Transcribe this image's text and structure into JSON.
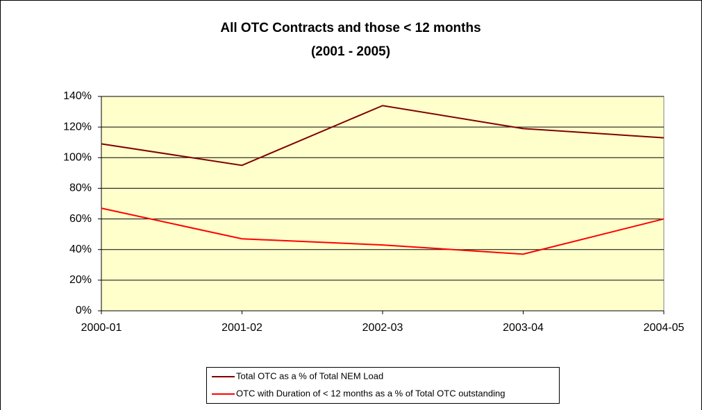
{
  "chart_data": {
    "type": "line",
    "title": [
      "All OTC Contracts and those < 12 months",
      "(2001 - 2005)"
    ],
    "categories": [
      "2000-01",
      "2001-02",
      "2002-03",
      "2003-04",
      "2004-05"
    ],
    "series": [
      {
        "name": "Total OTC as a % of Total NEM Load",
        "color": "#800000",
        "values": [
          109,
          95,
          134,
          119,
          113
        ]
      },
      {
        "name": "OTC with Duration of < 12 months as a % of Total OTC outstanding",
        "color": "#ff0000",
        "values": [
          67,
          47,
          43,
          37,
          60
        ]
      }
    ],
    "ylim": [
      0,
      140
    ],
    "yticks": [
      {
        "value": 0,
        "label": "0%"
      },
      {
        "value": 20,
        "label": "20%"
      },
      {
        "value": 40,
        "label": "40%"
      },
      {
        "value": 60,
        "label": "60%"
      },
      {
        "value": 80,
        "label": "80%"
      },
      {
        "value": 100,
        "label": "100%"
      },
      {
        "value": 120,
        "label": "120%"
      },
      {
        "value": 140,
        "label": "140%"
      }
    ],
    "grid": true,
    "legend": "bottom",
    "plot_background": "#ffffcc"
  }
}
